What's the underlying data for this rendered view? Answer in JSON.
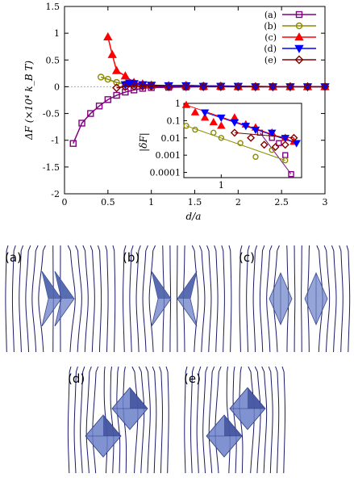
{
  "chart_data": {
    "type": "line",
    "xlabel": "d/a",
    "ylabel": "ΔF (×10⁴ k_B T)",
    "xlim": [
      0,
      3
    ],
    "ylim": [
      -2,
      1.5
    ],
    "xticks": [
      "0",
      "0.5",
      "1",
      "1.5",
      "2",
      "2.5",
      "3"
    ],
    "yticks": [
      "-2",
      "-1.5",
      "-1",
      "-0.5",
      "0",
      "0.5",
      "1",
      "1.5"
    ],
    "legend_position": "top-right",
    "series": [
      {
        "name": "(a)",
        "color": "#800080",
        "marker": "square",
        "x": [
          0.1,
          0.2,
          0.3,
          0.4,
          0.5,
          0.6,
          0.7,
          0.8,
          0.9,
          1.0,
          1.2,
          1.4,
          1.6,
          1.8,
          2.0,
          2.2,
          2.4,
          2.6,
          2.8,
          3.0
        ],
        "y": [
          -1.06,
          -0.68,
          -0.5,
          -0.36,
          -0.24,
          -0.16,
          -0.1,
          -0.06,
          -0.03,
          -0.015,
          -0.01,
          -0.005,
          0,
          0,
          0,
          0,
          0,
          0,
          0,
          0
        ]
      },
      {
        "name": "(b)",
        "color": "#8b8b00",
        "marker": "circle",
        "x": [
          0.42,
          0.5,
          0.6,
          0.7,
          0.8,
          0.9,
          1.0,
          1.2,
          1.4,
          1.6,
          1.8,
          2.0,
          2.2,
          2.4,
          2.6,
          2.8,
          3.0
        ],
        "y": [
          0.18,
          0.14,
          0.08,
          0.05,
          0.04,
          0.03,
          0.02,
          0.02,
          0.03,
          0.02,
          0.02,
          0.01,
          0.01,
          0.0,
          0.0,
          0.0,
          0.0
        ]
      },
      {
        "name": "(c)",
        "color": "#ff0000",
        "marker": "triangle-up",
        "x": [
          0.5,
          0.55,
          0.6,
          0.7,
          0.8,
          0.9,
          1.0,
          1.2,
          1.4,
          1.6,
          1.8,
          2.0,
          2.2,
          2.4,
          2.6,
          2.8,
          3.0
        ],
        "y": [
          0.93,
          0.6,
          0.3,
          0.2,
          0.08,
          0.05,
          0.03,
          0.02,
          0.02,
          0.01,
          0.01,
          0.0,
          0.0,
          0.0,
          0.0,
          0.0,
          0.0
        ]
      },
      {
        "name": "(d)",
        "color": "#0000ff",
        "marker": "triangle-down",
        "x": [
          0.7,
          0.75,
          0.8,
          0.9,
          1.0,
          1.2,
          1.4,
          1.6,
          1.8,
          2.0,
          2.2,
          2.4,
          2.6,
          2.8,
          3.0
        ],
        "y": [
          0.04,
          0.07,
          0.06,
          0.04,
          0.03,
          0.02,
          0.02,
          0.01,
          0.01,
          0.01,
          0.0,
          0.0,
          0.0,
          0.0,
          0.0
        ]
      },
      {
        "name": "(e)",
        "color": "#800000",
        "marker": "diamond",
        "x": [
          0.6,
          0.7,
          0.8,
          0.9,
          1.0,
          1.2,
          1.4,
          1.6,
          1.8,
          2.0,
          2.2,
          2.4,
          2.6,
          2.8,
          3.0
        ],
        "y": [
          -0.02,
          0.0,
          0.01,
          0.01,
          0.01,
          0.0,
          0.0,
          0.0,
          0.0,
          0.0,
          0.0,
          0.0,
          0.0,
          0.0,
          0.0
        ]
      }
    ],
    "inset": {
      "type": "scatter",
      "ylabel": "|δF|",
      "xscale": "log",
      "yscale": "log",
      "xlim": [
        0.6,
        3
      ],
      "ylim": [
        5e-05,
        1
      ],
      "xticks": [
        "1"
      ],
      "yticks": [
        "1",
        "0.1",
        "0.01",
        "0.001",
        "0.0001"
      ],
      "series": [
        {
          "name": "(a)",
          "x": [
            1.7,
            2.0,
            2.2,
            2.4,
            2.6
          ],
          "y": [
            0.02,
            0.01,
            0.005,
            0.001,
            8e-05
          ]
        },
        {
          "name": "(b)",
          "x": [
            0.62,
            0.7,
            0.9,
            1.0,
            1.3,
            1.6,
            2.0,
            2.4
          ],
          "y": [
            0.05,
            0.03,
            0.02,
            0.01,
            0.005,
            0.0008,
            0.002,
            0.0005
          ]
        },
        {
          "name": "(c)",
          "x": [
            0.62,
            0.7,
            0.8,
            0.9,
            1.0,
            1.2,
            1.4,
            1.6,
            2.0,
            2.4,
            2.7
          ],
          "y": [
            0.8,
            0.3,
            0.15,
            0.08,
            0.05,
            0.15,
            0.06,
            0.04,
            0.02,
            0.01,
            0.006
          ]
        },
        {
          "name": "(d)",
          "x": [
            0.8,
            1.0,
            1.2,
            1.4,
            1.6,
            2.0,
            2.4,
            2.8
          ],
          "y": [
            0.3,
            0.15,
            0.08,
            0.05,
            0.03,
            0.02,
            0.01,
            0.005
          ]
        },
        {
          "name": "(e)",
          "x": [
            1.2,
            1.5,
            1.8,
            2.1,
            2.4,
            2.7
          ],
          "y": [
            0.02,
            0.01,
            0.004,
            0.003,
            0.004,
            0.01
          ]
        }
      ]
    }
  },
  "diagram": {
    "panels": [
      {
        "label": "(a)"
      },
      {
        "label": "(b)"
      },
      {
        "label": "(c)"
      },
      {
        "label": "(d)"
      },
      {
        "label": "(e)"
      }
    ],
    "line_color": "#1a1a66",
    "particle_color": "#6a7fc8"
  }
}
